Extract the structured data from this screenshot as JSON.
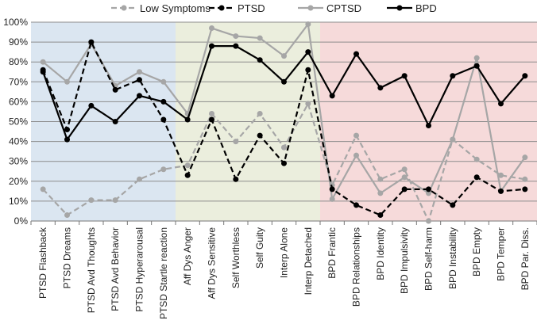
{
  "chart_data": {
    "type": "line",
    "title": "",
    "xlabel": "",
    "ylabel": "",
    "ylim": [
      0,
      100
    ],
    "yticks": [
      "0%",
      "10%",
      "20%",
      "30%",
      "40%",
      "50%",
      "60%",
      "70%",
      "80%",
      "90%",
      "100%"
    ],
    "grid": true,
    "legend_position": "top",
    "categories": [
      "PTSD Flashback",
      "PTSD Dreams",
      "PTSD Avd Thoughts",
      "PTSD Avd Behavior",
      "PTSD Hyperarousal",
      "PTSD Startle reaction",
      "Aff Dys Anger",
      "Aff Dys Sensitive",
      "Self Worthless",
      "Self Guity",
      "Interp Alone",
      "Interp Detached",
      "BPD Frantic",
      "BPD Relationships",
      "BPD Identity",
      "BPD Impulsivity",
      "BPD Self-harm",
      "BPD Instability",
      "BPD Empty",
      "BPD Temper",
      "BPD Par. Diss."
    ],
    "regions": [
      {
        "from": 0,
        "to": 5,
        "color": "#dbe6f1"
      },
      {
        "from": 6,
        "to": 11,
        "color": "#ebeedd"
      },
      {
        "from": 12,
        "to": 20,
        "color": "#f6dada"
      }
    ],
    "series": [
      {
        "name": "Low Symptoms",
        "color": "#a6a6a6",
        "dashed": true,
        "values": [
          16,
          3,
          10.5,
          10.5,
          21,
          26,
          28,
          54,
          40,
          54,
          37,
          59,
          18,
          43,
          21,
          26,
          0,
          41,
          31,
          23,
          21
        ]
      },
      {
        "name": "PTSD",
        "color": "#000000",
        "dashed": true,
        "values": [
          76,
          46,
          90,
          66,
          71,
          51,
          23,
          51,
          21,
          43,
          29,
          76,
          16,
          8,
          3,
          16,
          16,
          8,
          22,
          15,
          16
        ]
      },
      {
        "name": "CPTSD",
        "color": "#a6a6a6",
        "dashed": false,
        "values": [
          80,
          70,
          89,
          68,
          75,
          70,
          54,
          97,
          93,
          92,
          83,
          99,
          11,
          33,
          14,
          22,
          14,
          41,
          82,
          15,
          32
        ]
      },
      {
        "name": "BPD",
        "color": "#000000",
        "dashed": false,
        "values": [
          75,
          41,
          58,
          50,
          63,
          60,
          51,
          88,
          88,
          81,
          70,
          85,
          63,
          84,
          67,
          73,
          48,
          73,
          78,
          59,
          73
        ]
      }
    ]
  }
}
